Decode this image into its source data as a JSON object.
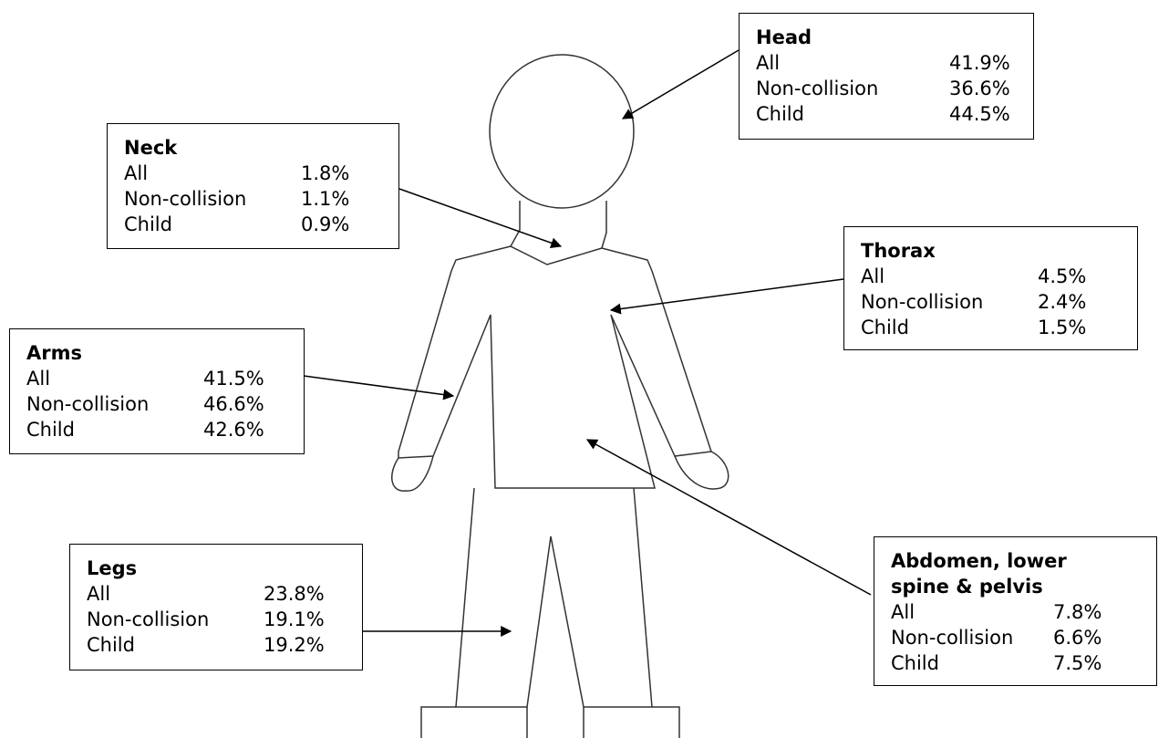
{
  "boxes": [
    {
      "title": "Head",
      "rows": [
        [
          "All",
          "41.9%"
        ],
        [
          "Non-collision",
          "36.6%"
        ],
        [
          "Child",
          "44.5%"
        ]
      ]
    },
    {
      "title": "Neck",
      "rows": [
        [
          "All",
          "1.8%"
        ],
        [
          "Non-collision",
          "1.1%"
        ],
        [
          "Child",
          "0.9%"
        ]
      ]
    },
    {
      "title": "Thorax",
      "rows": [
        [
          "All",
          "4.5%"
        ],
        [
          "Non-collision",
          "2.4%"
        ],
        [
          "Child",
          "1.5%"
        ]
      ]
    },
    {
      "title": "Arms",
      "rows": [
        [
          "All",
          "41.5%"
        ],
        [
          "Non-collision",
          "46.6%"
        ],
        [
          "Child",
          "42.6%"
        ]
      ]
    },
    {
      "title": "Legs",
      "rows": [
        [
          "All",
          "23.8%"
        ],
        [
          "Non-collision",
          "19.1%"
        ],
        [
          "Child",
          "19.2%"
        ]
      ]
    },
    {
      "title": "Abdomen, lower spine & pelvis",
      "rows": [
        [
          "All",
          "7.8%"
        ],
        [
          "Non-collision",
          "6.6%"
        ],
        [
          "Child",
          "7.5%"
        ]
      ]
    }
  ]
}
